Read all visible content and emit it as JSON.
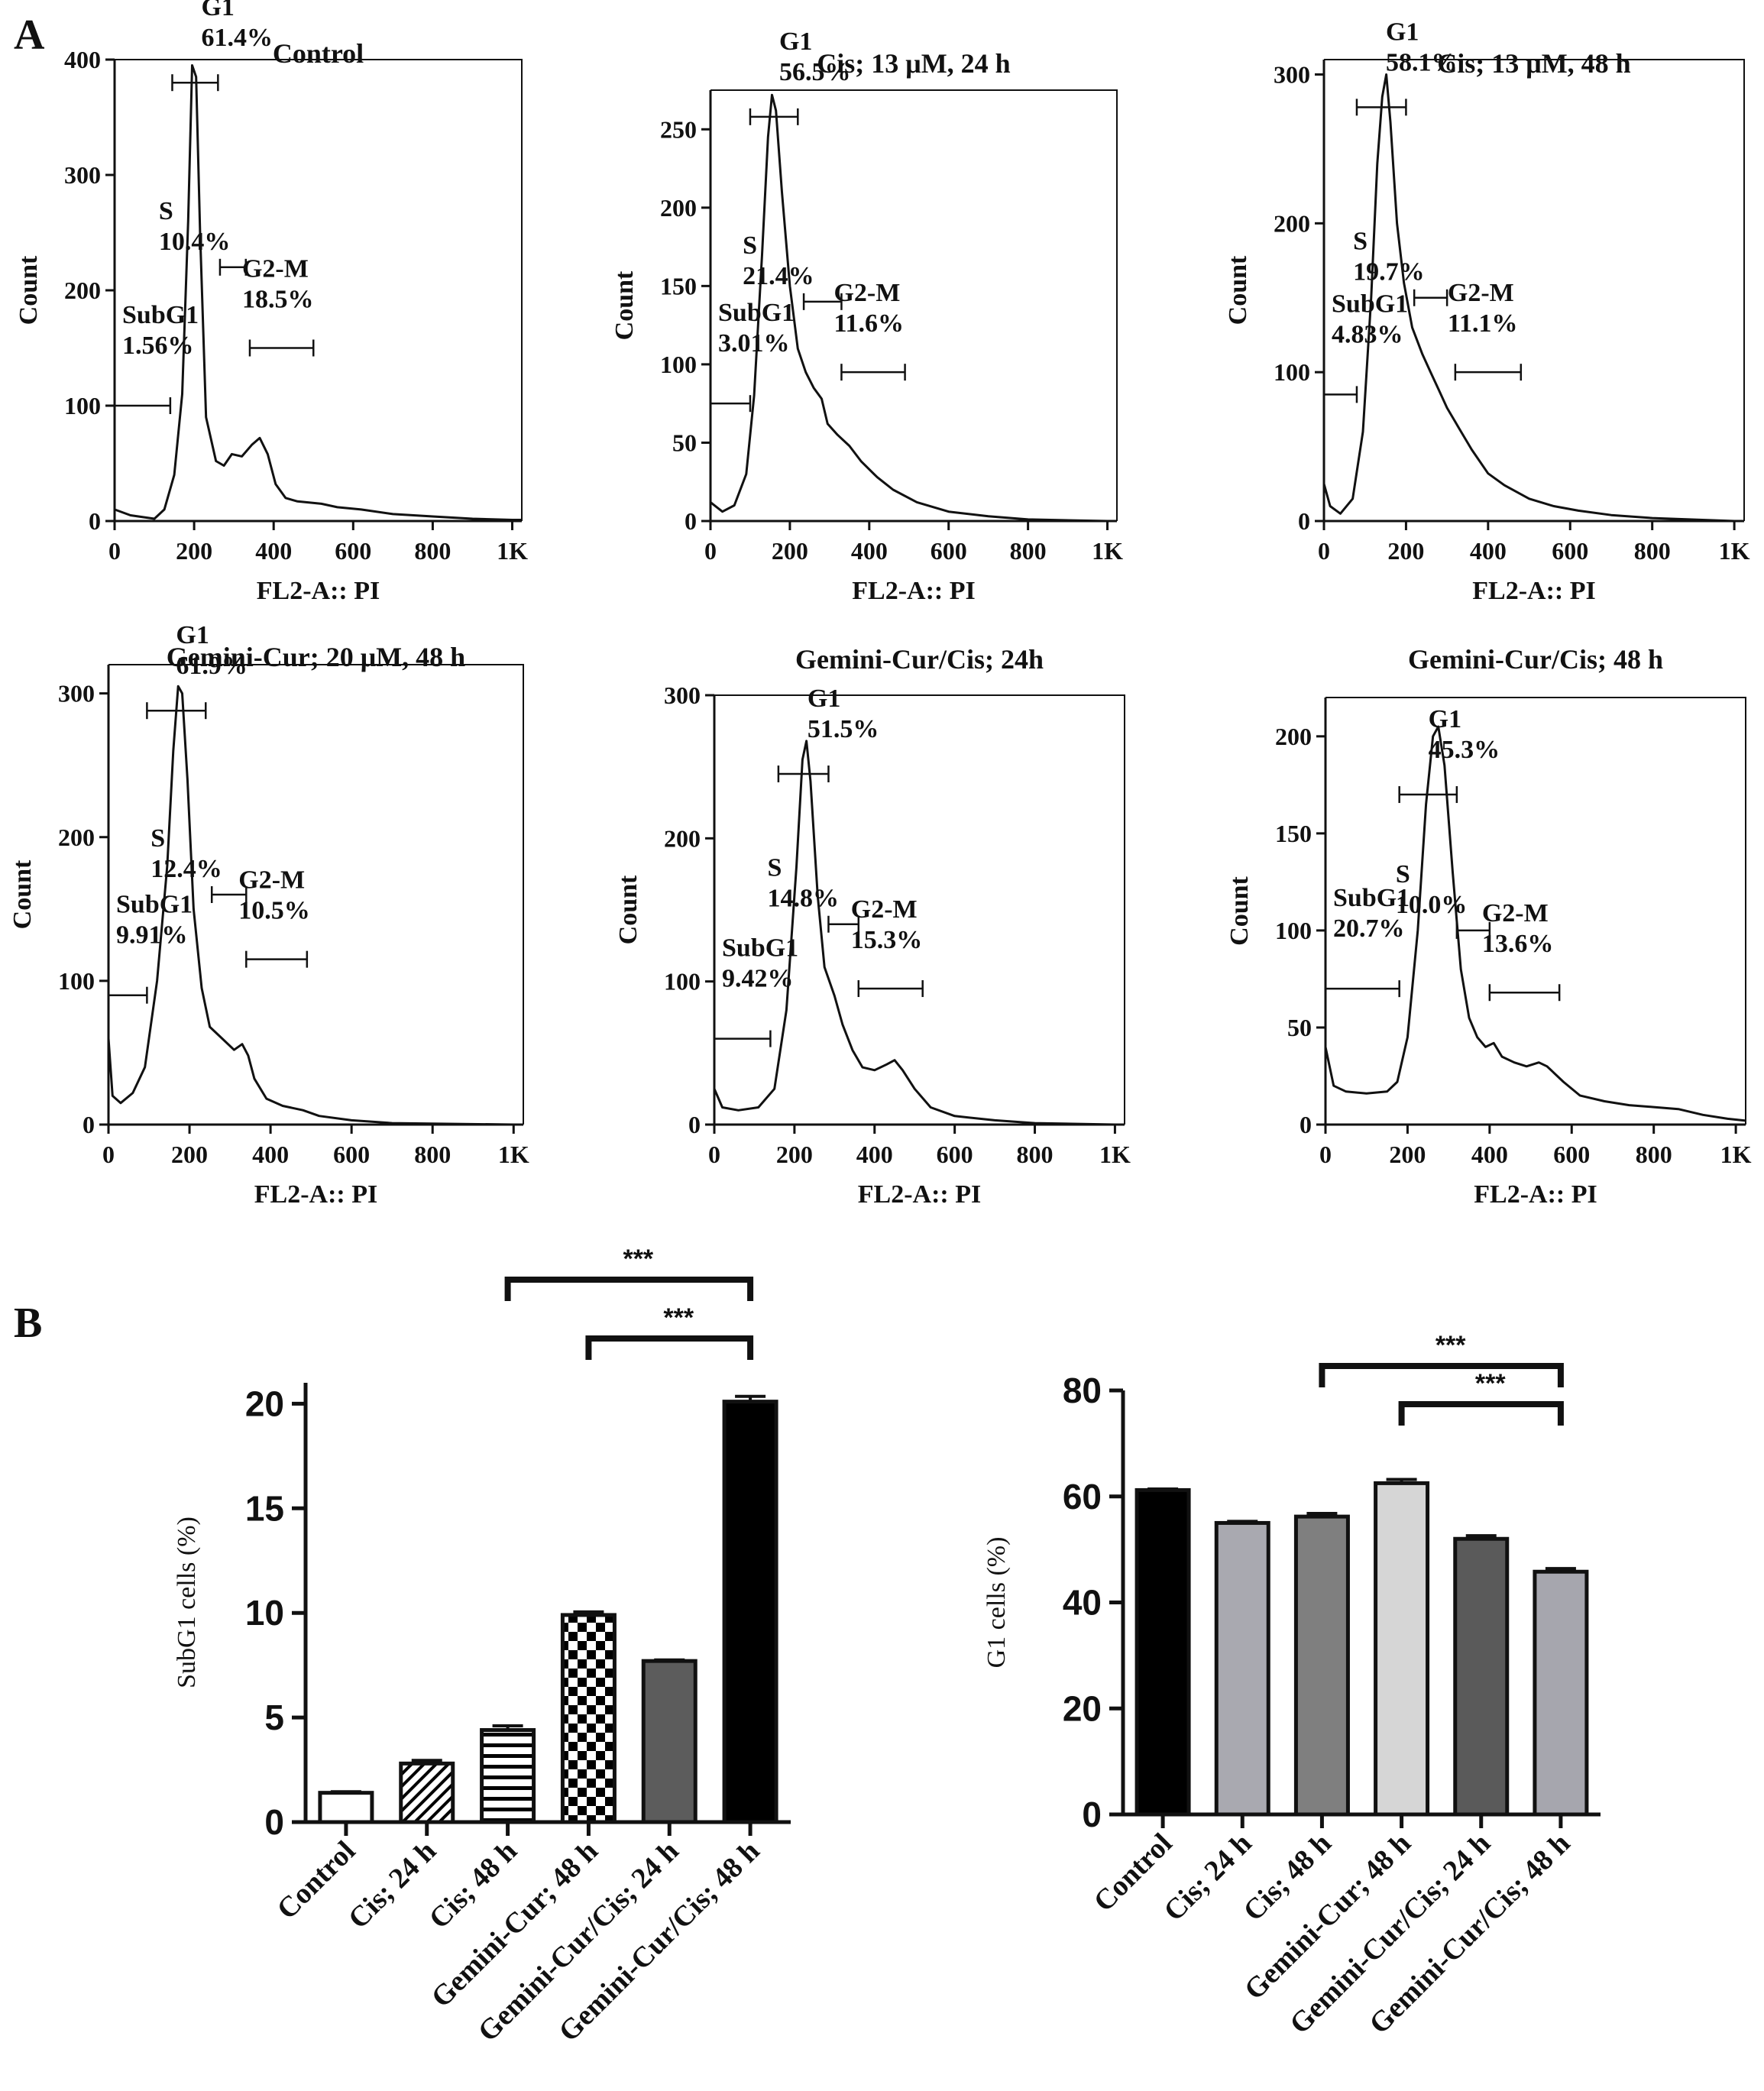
{
  "panel_labels": {
    "a": "A",
    "b": "B"
  },
  "colors": {
    "ink": "#111111",
    "gate_gray": "#9a9a9a"
  },
  "chart_data": [
    {
      "type": "line",
      "id": "hist-control",
      "title": "Control",
      "xlabel": "FL2-A:: PI",
      "ylabel": "Count",
      "xlim": [
        0,
        1024
      ],
      "ylim": [
        0,
        400
      ],
      "x_ticks": [
        "0",
        "200",
        "400",
        "600",
        "800",
        "1K"
      ],
      "y_ticks": [
        {
          "value": 0,
          "label": "0"
        },
        {
          "value": 100,
          "label": "100"
        },
        {
          "value": 200,
          "label": "200"
        },
        {
          "value": 300,
          "label": "300"
        },
        {
          "value": 400,
          "label": "400"
        }
      ],
      "profile": [
        [
          0,
          10
        ],
        [
          40,
          5
        ],
        [
          100,
          2
        ],
        [
          125,
          10
        ],
        [
          150,
          40
        ],
        [
          170,
          110
        ],
        [
          185,
          260
        ],
        [
          195,
          395
        ],
        [
          205,
          385
        ],
        [
          215,
          250
        ],
        [
          230,
          90
        ],
        [
          255,
          52
        ],
        [
          275,
          48
        ],
        [
          295,
          58
        ],
        [
          320,
          56
        ],
        [
          345,
          66
        ],
        [
          365,
          72
        ],
        [
          385,
          58
        ],
        [
          405,
          32
        ],
        [
          430,
          20
        ],
        [
          460,
          17
        ],
        [
          520,
          15
        ],
        [
          560,
          12
        ],
        [
          620,
          10
        ],
        [
          700,
          6
        ],
        [
          800,
          4
        ],
        [
          900,
          2
        ],
        [
          1000,
          1
        ],
        [
          1024,
          1
        ]
      ],
      "gates": [
        {
          "name": "SubG1",
          "value": "1.56%",
          "x1": 0,
          "x2": 140,
          "y": 100
        },
        {
          "name": "G1",
          "value": "61.4%",
          "x1": 145,
          "x2": 260,
          "y": 380
        },
        {
          "name": "S",
          "value": "10.4%",
          "x1": 265,
          "x2": 330,
          "y": 220
        },
        {
          "name": "G2-M",
          "value": "18.5%",
          "x1": 340,
          "x2": 500,
          "y": 150
        }
      ]
    },
    {
      "type": "line",
      "id": "hist-cis-24",
      "title": "Cis; 13 μM, 24 h",
      "xlabel": "FL2-A:: PI",
      "ylabel": "Count",
      "xlim": [
        0,
        1024
      ],
      "ylim": [
        0,
        275
      ],
      "x_ticks": [
        "0",
        "200",
        "400",
        "600",
        "800",
        "1K"
      ],
      "y_ticks": [
        {
          "value": 0,
          "label": "0"
        },
        {
          "value": 50,
          "label": "50"
        },
        {
          "value": 100,
          "label": "100"
        },
        {
          "value": 150,
          "label": "150"
        },
        {
          "value": 200,
          "label": "200"
        },
        {
          "value": 250,
          "label": "250"
        }
      ],
      "profile": [
        [
          0,
          12
        ],
        [
          30,
          6
        ],
        [
          60,
          10
        ],
        [
          90,
          30
        ],
        [
          110,
          80
        ],
        [
          130,
          170
        ],
        [
          145,
          245
        ],
        [
          155,
          272
        ],
        [
          165,
          262
        ],
        [
          180,
          210
        ],
        [
          200,
          150
        ],
        [
          220,
          110
        ],
        [
          240,
          95
        ],
        [
          260,
          85
        ],
        [
          280,
          78
        ],
        [
          295,
          62
        ],
        [
          320,
          55
        ],
        [
          350,
          48
        ],
        [
          380,
          38
        ],
        [
          420,
          28
        ],
        [
          460,
          20
        ],
        [
          520,
          12
        ],
        [
          600,
          6
        ],
        [
          700,
          3
        ],
        [
          800,
          1
        ],
        [
          1000,
          0
        ],
        [
          1024,
          0
        ]
      ],
      "gates": [
        {
          "name": "SubG1",
          "value": "3.01%",
          "x1": 0,
          "x2": 100,
          "y": 75
        },
        {
          "name": "G1",
          "value": "56.5%",
          "x1": 100,
          "x2": 220,
          "y": 258
        },
        {
          "name": "S",
          "value": "21.4%",
          "x1": 235,
          "x2": 330,
          "y": 140
        },
        {
          "name": "G2-M",
          "value": "11.6%",
          "x1": 330,
          "x2": 490,
          "y": 95
        }
      ]
    },
    {
      "type": "line",
      "id": "hist-cis-48",
      "title": "Cis; 13 μM, 48 h",
      "xlabel": "FL2-A:: PI",
      "ylabel": "Count",
      "xlim": [
        0,
        1024
      ],
      "ylim": [
        0,
        310
      ],
      "x_ticks": [
        "0",
        "200",
        "400",
        "600",
        "800",
        "1K"
      ],
      "y_ticks": [
        {
          "value": 0,
          "label": "0"
        },
        {
          "value": 100,
          "label": "100"
        },
        {
          "value": 200,
          "label": "200"
        },
        {
          "value": 300,
          "label": "300"
        }
      ],
      "profile": [
        [
          0,
          25
        ],
        [
          15,
          10
        ],
        [
          40,
          5
        ],
        [
          70,
          15
        ],
        [
          95,
          60
        ],
        [
          115,
          150
        ],
        [
          130,
          240
        ],
        [
          142,
          285
        ],
        [
          152,
          300
        ],
        [
          162,
          268
        ],
        [
          178,
          200
        ],
        [
          195,
          160
        ],
        [
          215,
          130
        ],
        [
          240,
          112
        ],
        [
          260,
          100
        ],
        [
          280,
          88
        ],
        [
          300,
          76
        ],
        [
          330,
          62
        ],
        [
          360,
          48
        ],
        [
          400,
          32
        ],
        [
          440,
          24
        ],
        [
          500,
          15
        ],
        [
          560,
          10
        ],
        [
          620,
          7
        ],
        [
          700,
          4
        ],
        [
          800,
          2
        ],
        [
          1000,
          0
        ],
        [
          1024,
          0
        ]
      ],
      "gates": [
        {
          "name": "SubG1",
          "value": "4.83%",
          "x1": 0,
          "x2": 80,
          "y": 85
        },
        {
          "name": "G1",
          "value": "58.1%",
          "x1": 80,
          "x2": 200,
          "y": 278
        },
        {
          "name": "S",
          "value": "19.7%",
          "x1": 220,
          "x2": 300,
          "y": 150
        },
        {
          "name": "G2-M",
          "value": "11.1%",
          "x1": 320,
          "x2": 480,
          "y": 100
        }
      ]
    },
    {
      "type": "line",
      "id": "hist-gemini-48",
      "title": "Gemini-Cur; 20 μM, 48 h",
      "xlabel": "FL2-A:: PI",
      "ylabel": "Count",
      "xlim": [
        0,
        1024
      ],
      "ylim": [
        0,
        320
      ],
      "x_ticks": [
        "0",
        "200",
        "400",
        "600",
        "800",
        "1K"
      ],
      "y_ticks": [
        {
          "value": 0,
          "label": "0"
        },
        {
          "value": 100,
          "label": "100"
        },
        {
          "value": 200,
          "label": "200"
        },
        {
          "value": 300,
          "label": "300"
        }
      ],
      "profile": [
        [
          0,
          60
        ],
        [
          10,
          20
        ],
        [
          30,
          15
        ],
        [
          60,
          22
        ],
        [
          90,
          40
        ],
        [
          120,
          100
        ],
        [
          145,
          180
        ],
        [
          160,
          260
        ],
        [
          172,
          305
        ],
        [
          182,
          300
        ],
        [
          195,
          240
        ],
        [
          210,
          150
        ],
        [
          230,
          95
        ],
        [
          250,
          68
        ],
        [
          280,
          60
        ],
        [
          310,
          52
        ],
        [
          330,
          56
        ],
        [
          345,
          48
        ],
        [
          360,
          32
        ],
        [
          390,
          18
        ],
        [
          430,
          13
        ],
        [
          480,
          10
        ],
        [
          520,
          6
        ],
        [
          600,
          3
        ],
        [
          700,
          1
        ],
        [
          1000,
          0
        ],
        [
          1024,
          0
        ]
      ],
      "gates": [
        {
          "name": "SubG1",
          "value": "9.91%",
          "x1": 0,
          "x2": 95,
          "y": 90
        },
        {
          "name": "G1",
          "value": "61.9%",
          "x1": 95,
          "x2": 240,
          "y": 288
        },
        {
          "name": "S",
          "value": "12.4%",
          "x1": 255,
          "x2": 340,
          "y": 160
        },
        {
          "name": "G2-M",
          "value": "10.5%",
          "x1": 340,
          "x2": 490,
          "y": 115
        }
      ]
    },
    {
      "type": "line",
      "id": "hist-combo-24",
      "title": "Gemini-Cur/Cis; 24h",
      "xlabel": "FL2-A:: PI",
      "ylabel": "Count",
      "xlim": [
        0,
        1024
      ],
      "ylim": [
        0,
        300
      ],
      "x_ticks": [
        "0",
        "200",
        "400",
        "600",
        "800",
        "1K"
      ],
      "y_ticks": [
        {
          "value": 0,
          "label": "0"
        },
        {
          "value": 100,
          "label": "100"
        },
        {
          "value": 200,
          "label": "200"
        },
        {
          "value": 300,
          "label": "300"
        }
      ],
      "profile": [
        [
          0,
          25
        ],
        [
          20,
          12
        ],
        [
          60,
          10
        ],
        [
          110,
          12
        ],
        [
          150,
          25
        ],
        [
          180,
          80
        ],
        [
          205,
          180
        ],
        [
          220,
          255
        ],
        [
          230,
          268
        ],
        [
          240,
          240
        ],
        [
          258,
          160
        ],
        [
          275,
          110
        ],
        [
          300,
          90
        ],
        [
          320,
          70
        ],
        [
          345,
          52
        ],
        [
          370,
          40
        ],
        [
          400,
          38
        ],
        [
          430,
          42
        ],
        [
          450,
          45
        ],
        [
          470,
          38
        ],
        [
          500,
          25
        ],
        [
          540,
          12
        ],
        [
          600,
          6
        ],
        [
          700,
          3
        ],
        [
          800,
          1
        ],
        [
          1000,
          0
        ],
        [
          1024,
          0
        ]
      ],
      "gates": [
        {
          "name": "SubG1",
          "value": "9.42%",
          "x1": 0,
          "x2": 140,
          "y": 60
        },
        {
          "name": "G1",
          "value": "51.5%",
          "x1": 160,
          "x2": 285,
          "y": 245
        },
        {
          "name": "S",
          "value": "14.8%",
          "x1": 285,
          "x2": 360,
          "y": 140
        },
        {
          "name": "G2-M",
          "value": "15.3%",
          "x1": 360,
          "x2": 520,
          "y": 95
        }
      ]
    },
    {
      "type": "line",
      "id": "hist-combo-48",
      "title": "Gemini-Cur/Cis; 48 h",
      "xlabel": "FL2-A:: PI",
      "ylabel": "Count",
      "xlim": [
        0,
        1024
      ],
      "ylim": [
        0,
        220
      ],
      "x_ticks": [
        "0",
        "200",
        "400",
        "600",
        "800",
        "1K"
      ],
      "y_ticks": [
        {
          "value": 0,
          "label": "0"
        },
        {
          "value": 50,
          "label": "50"
        },
        {
          "value": 100,
          "label": "100"
        },
        {
          "value": 150,
          "label": "150"
        },
        {
          "value": 200,
          "label": "200"
        }
      ],
      "profile": [
        [
          0,
          40
        ],
        [
          20,
          20
        ],
        [
          50,
          17
        ],
        [
          100,
          16
        ],
        [
          150,
          17
        ],
        [
          175,
          22
        ],
        [
          200,
          45
        ],
        [
          225,
          100
        ],
        [
          245,
          165
        ],
        [
          262,
          200
        ],
        [
          275,
          205
        ],
        [
          290,
          185
        ],
        [
          310,
          130
        ],
        [
          330,
          80
        ],
        [
          350,
          55
        ],
        [
          370,
          45
        ],
        [
          390,
          40
        ],
        [
          410,
          42
        ],
        [
          430,
          35
        ],
        [
          460,
          32
        ],
        [
          490,
          30
        ],
        [
          520,
          32
        ],
        [
          540,
          30
        ],
        [
          580,
          22
        ],
        [
          620,
          15
        ],
        [
          680,
          12
        ],
        [
          740,
          10
        ],
        [
          800,
          9
        ],
        [
          860,
          8
        ],
        [
          920,
          5
        ],
        [
          980,
          3
        ],
        [
          1024,
          2
        ]
      ],
      "gates": [
        {
          "name": "SubG1",
          "value": "20.7%",
          "x1": 0,
          "x2": 180,
          "y": 70
        },
        {
          "name": "G1",
          "value": "45.3%",
          "x1": 180,
          "x2": 320,
          "y": 170
        },
        {
          "name": "S",
          "value": "10.0%",
          "x1": 320,
          "x2": 400,
          "y": 100
        },
        {
          "name": "G2-M",
          "value": "13.6%",
          "x1": 400,
          "x2": 570,
          "y": 68
        }
      ]
    },
    {
      "type": "bar",
      "id": "bar-subg1",
      "categories": [
        "Control",
        "Cis; 24 h",
        "Cis; 48 h",
        "Gemini-Cur; 48 h",
        "Gemini-Cur/Cis; 24 h",
        "Gemini-Cur/Cis; 48 h"
      ],
      "values": [
        1.4,
        2.8,
        4.4,
        9.9,
        7.7,
        20.1
      ],
      "errors": [
        0.05,
        0.15,
        0.2,
        0.15,
        0.05,
        0.25
      ],
      "fills": [
        "white",
        "diag",
        "hlines",
        "checker",
        "#5c5c5c",
        "#000000"
      ],
      "ylabel": "SubG1 cells (%)",
      "ylim": [
        0,
        21
      ],
      "y_ticks": [
        {
          "value": 0,
          "label": "0"
        },
        {
          "value": 5,
          "label": "5"
        },
        {
          "value": 10,
          "label": "10"
        },
        {
          "value": 15,
          "label": "15"
        },
        {
          "value": 20,
          "label": "20"
        }
      ],
      "significance": [
        {
          "from": 2,
          "to": 5,
          "label": "***"
        },
        {
          "from": 3,
          "to": 5,
          "label": "***"
        }
      ]
    },
    {
      "type": "bar",
      "id": "bar-g1",
      "categories": [
        "Control",
        "Cis; 24 h",
        "Cis; 48 h",
        "Gemini-Cur; 48 h",
        "Gemini-Cur/Cis; 24 h",
        "Gemini-Cur/Cis; 48 h"
      ],
      "values": [
        61.2,
        55.0,
        56.2,
        62.5,
        52.0,
        45.8
      ],
      "errors": [
        0.2,
        0.3,
        0.6,
        0.7,
        0.6,
        0.6
      ],
      "fills": [
        "#000000",
        "#a9a9b0",
        "#7f7f7f",
        "#d6d6d6",
        "#5a5a5a",
        "#a6a6ae"
      ],
      "ylabel": "G1 cells (%)",
      "ylim": [
        0,
        80
      ],
      "y_ticks": [
        {
          "value": 0,
          "label": "0"
        },
        {
          "value": 20,
          "label": "20"
        },
        {
          "value": 40,
          "label": "40"
        },
        {
          "value": 60,
          "label": "60"
        },
        {
          "value": 80,
          "label": "80"
        }
      ],
      "significance": [
        {
          "from": 2,
          "to": 5,
          "label": "***"
        },
        {
          "from": 3,
          "to": 5,
          "label": "***"
        }
      ]
    }
  ]
}
